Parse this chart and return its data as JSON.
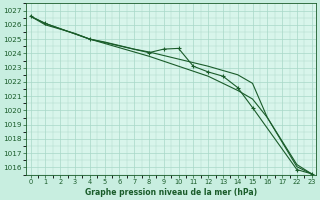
{
  "background_color": "#c8eee0",
  "plot_bg_color": "#d8f5eb",
  "grid_color": "#a8d8c8",
  "line_color": "#1a5c2a",
  "xlabel": "Graphe pression niveau de la mer (hPa)",
  "ylim": [
    1015.5,
    1027.5
  ],
  "yticks": [
    1016,
    1017,
    1018,
    1019,
    1020,
    1021,
    1022,
    1023,
    1024,
    1025,
    1026,
    1027
  ],
  "xlim": [
    -0.3,
    19.3
  ],
  "xtick_positions": [
    0,
    1,
    2,
    3,
    4,
    5,
    6,
    7,
    8,
    9,
    10,
    11,
    12,
    13,
    14,
    15,
    16,
    17,
    18,
    19
  ],
  "xtick_labels": [
    "0",
    "1",
    "2",
    "3",
    "4",
    "5",
    "6",
    "7",
    "8",
    "9",
    "10",
    "11",
    "12",
    "13",
    "14",
    "15",
    "16",
    "17",
    "22",
    "23"
  ],
  "line1_x_raw": [
    0,
    1,
    4,
    8,
    9,
    10,
    11,
    12,
    13,
    14,
    15,
    18,
    19
  ],
  "line1_y": [
    1026.6,
    1026.1,
    1025.0,
    1024.05,
    1024.3,
    1024.35,
    1023.1,
    1022.7,
    1022.4,
    1021.6,
    1020.2,
    1015.85,
    1015.55
  ],
  "line2_x_raw": [
    0,
    1,
    4,
    5,
    6,
    7,
    8,
    9,
    10,
    11,
    12,
    13,
    14,
    15,
    16,
    18,
    19
  ],
  "line2_y": [
    1026.6,
    1026.1,
    1025.0,
    1024.8,
    1024.55,
    1024.3,
    1024.1,
    1023.85,
    1023.6,
    1023.35,
    1023.1,
    1022.8,
    1022.5,
    1021.9,
    1019.5,
    1016.05,
    1015.55
  ],
  "line3_x_raw": [
    0,
    1,
    2,
    3,
    4,
    5,
    6,
    7,
    8,
    9,
    10,
    11,
    12,
    13,
    14,
    15,
    16,
    18,
    19
  ],
  "line3_y": [
    1026.6,
    1026.0,
    1025.7,
    1025.4,
    1025.0,
    1024.7,
    1024.4,
    1024.1,
    1023.8,
    1023.45,
    1023.1,
    1022.75,
    1022.4,
    1021.9,
    1021.4,
    1020.8,
    1019.5,
    1016.2,
    1015.55
  ]
}
